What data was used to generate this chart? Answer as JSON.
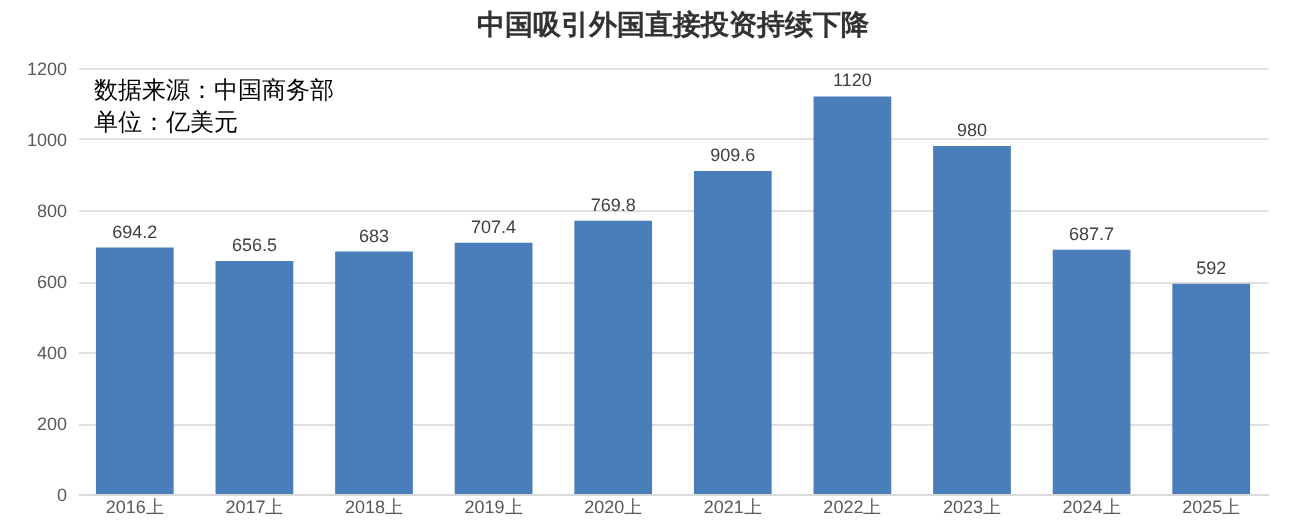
{
  "chart_data": {
    "type": "bar",
    "title": "中国吸引外国直接投资持续下降",
    "annotations": [
      "数据来源：中国商务部",
      "单位：亿美元"
    ],
    "categories": [
      "2016上",
      "2017上",
      "2018上",
      "2019上",
      "2020上",
      "2021上",
      "2022上",
      "2023上",
      "2024上",
      "2025上"
    ],
    "values": [
      694.2,
      656.5,
      683,
      707.4,
      769.8,
      909.6,
      1120,
      980,
      687.7,
      592
    ],
    "color": "#4a7ebb",
    "ylim": [
      0,
      1200
    ],
    "yticks": [
      0,
      200,
      400,
      600,
      800,
      1000,
      1200
    ],
    "grid": "y",
    "data_labels": true
  }
}
